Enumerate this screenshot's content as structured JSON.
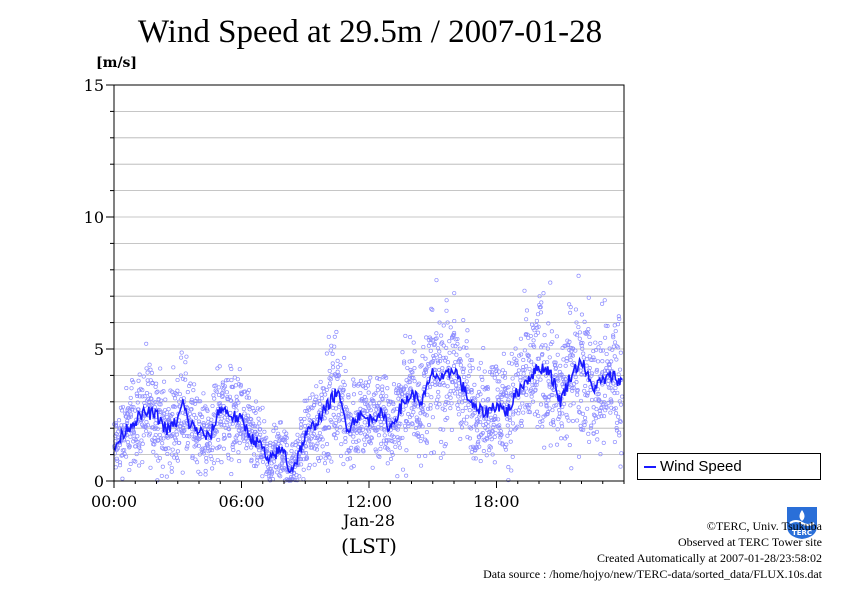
{
  "title": "Wind Speed at 29.5m / 2007-01-28",
  "unit_label": "[m/s]",
  "legend": {
    "entry": "Wind Speed"
  },
  "credits": {
    "line1": "©TERC, Univ. Tsukuba",
    "line2": "Observed at TERC Tower site",
    "line3": "Created Automatically at 2007-01-28/23:58:02",
    "line4": "Data source : /home/hojyo/new/TERC-data/sorted_data/FLUX.10s.dat"
  },
  "logo_text": "TERC",
  "colors": {
    "line": "#1a1aff",
    "points": "#8c8cff",
    "grid": "#b4b4b4"
  },
  "chart_data": {
    "type": "line",
    "title": "Wind Speed at 29.5m / 2007-01-28",
    "ylabel": "[m/s]",
    "xlabel": "(LST)",
    "date_label": "Jan-28",
    "ylim": [
      0,
      15
    ],
    "xlim_hours": [
      0,
      24
    ],
    "x_ticks": [
      "00:00",
      "06:00",
      "12:00",
      "18:00"
    ],
    "y_ticks": [
      0,
      5,
      10,
      15
    ],
    "grid": "horizontal",
    "legend_position": "right-bottom",
    "series": [
      {
        "name": "Wind Speed",
        "x_hours": [
          0,
          0.5,
          1,
          1.5,
          2,
          2.5,
          3,
          3.25,
          3.5,
          4,
          4.5,
          5,
          5.5,
          6,
          6.5,
          7,
          7.25,
          7.5,
          8,
          8.25,
          8.5,
          9,
          9.5,
          10,
          10.5,
          11,
          11.5,
          12,
          12.5,
          13,
          13.5,
          14,
          14.5,
          15,
          15.5,
          16,
          16.5,
          17,
          17.5,
          18,
          18.5,
          19,
          19.5,
          20,
          20.5,
          21,
          21.5,
          22,
          22.5,
          23,
          23.5,
          23.9
        ],
        "y": [
          1.2,
          1.9,
          2.3,
          2.6,
          2.5,
          1.9,
          2.3,
          3.0,
          2.2,
          1.9,
          1.6,
          2.8,
          2.5,
          2.3,
          1.6,
          1.3,
          0.6,
          1.0,
          1.2,
          0.4,
          0.6,
          1.7,
          2.2,
          2.8,
          3.4,
          2.0,
          2.5,
          2.3,
          2.6,
          2.0,
          2.8,
          3.3,
          3.0,
          4.1,
          3.8,
          4.3,
          3.4,
          2.7,
          2.6,
          2.9,
          2.6,
          3.4,
          3.9,
          4.3,
          4.2,
          3.0,
          4.0,
          4.6,
          3.5,
          3.8,
          4.0,
          3.7
        ]
      }
    ],
    "scatter_note": "10-second samples scattered around the line"
  }
}
